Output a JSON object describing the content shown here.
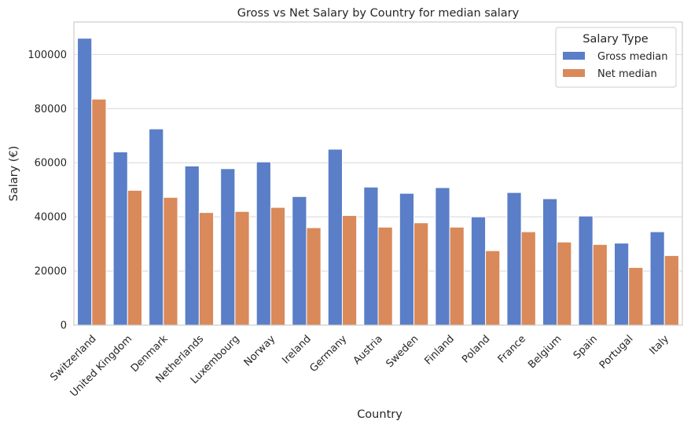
{
  "chart_data": {
    "type": "bar",
    "title": "Gross vs Net Salary by Country for median salary",
    "xlabel": "Country",
    "ylabel": "Salary (€)",
    "ylim": [
      0,
      112000
    ],
    "yticks": [
      0,
      20000,
      40000,
      60000,
      80000,
      100000
    ],
    "grid": true,
    "legend_position": "top-right",
    "legend_title": "Salary Type",
    "categories": [
      "Switzerland",
      "United Kingdom",
      "Denmark",
      "Netherlands",
      "Luxembourg",
      "Norway",
      "Ireland",
      "Germany",
      "Austria",
      "Sweden",
      "Finland",
      "Poland",
      "France",
      "Belgium",
      "Spain",
      "Portugal",
      "Italy"
    ],
    "series": [
      {
        "name": "Gross median",
        "color": "#5a7ec7",
        "values": [
          106000,
          64000,
          72500,
          58800,
          57800,
          60300,
          47500,
          65000,
          51000,
          48700,
          50800,
          40000,
          49000,
          46700,
          40300,
          30300,
          34500
        ]
      },
      {
        "name": "Net median",
        "color": "#d9895a",
        "values": [
          83500,
          49800,
          47200,
          41600,
          42000,
          43500,
          36000,
          40500,
          36200,
          37800,
          36200,
          27500,
          34500,
          30700,
          29800,
          21300,
          25700
        ]
      }
    ]
  }
}
